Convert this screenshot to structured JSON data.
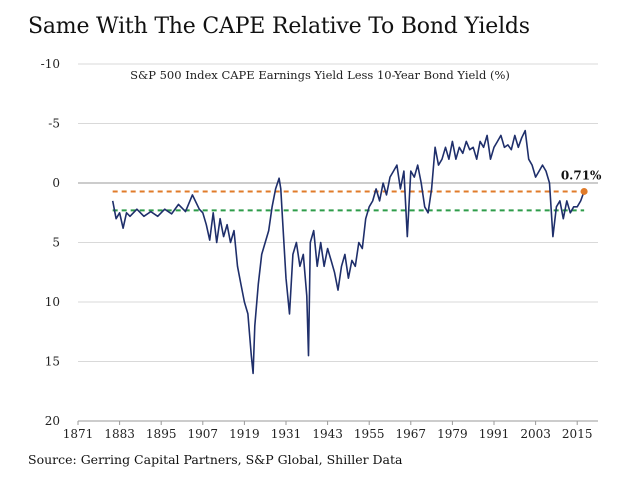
{
  "title": "Same With The CAPE Relative To Bond Yields",
  "source": "Source: Gerring Capital Partners, S&P Global, Shiller Data",
  "chart_data": {
    "type": "line",
    "subtitle": "S&P 500 Index CAPE Earnings Yield Less 10-Year Bond Yield (%)",
    "xlabel": "",
    "ylabel": "",
    "xlim": [
      1871,
      2021
    ],
    "ylim": [
      20,
      -10
    ],
    "y_axis_inverted": true,
    "x_ticks": [
      1871,
      1883,
      1895,
      1907,
      1919,
      1931,
      1943,
      1955,
      1967,
      1979,
      1991,
      2003,
      2015
    ],
    "y_ticks": [
      -10,
      -5,
      0,
      5,
      10,
      15,
      20
    ],
    "grid": "horizontal",
    "series": [
      {
        "color": "#1f2f6b",
        "x": [
          1881,
          1882,
          1883,
          1884,
          1885,
          1886,
          1888,
          1890,
          1892,
          1894,
          1896,
          1898,
          1900,
          1902,
          1904,
          1906,
          1907,
          1908,
          1909,
          1910,
          1911,
          1912,
          1913,
          1914,
          1915,
          1916,
          1917,
          1918,
          1919,
          1920,
          1921,
          1921.5,
          1922,
          1923,
          1924,
          1925,
          1926,
          1927,
          1928,
          1929,
          1929.5,
          1930,
          1931,
          1932,
          1933,
          1934,
          1935,
          1936,
          1937,
          1937.5,
          1938,
          1939,
          1940,
          1941,
          1942,
          1943,
          1944,
          1945,
          1946,
          1947,
          1948,
          1949,
          1950,
          1951,
          1952,
          1953,
          1954,
          1955,
          1956,
          1957,
          1958,
          1959,
          1960,
          1961,
          1962,
          1963,
          1964,
          1965,
          1966,
          1967,
          1968,
          1969,
          1970,
          1971,
          1972,
          1973,
          1974,
          1975,
          1976,
          1977,
          1978,
          1979,
          1980,
          1981,
          1982,
          1983,
          1984,
          1985,
          1986,
          1987,
          1988,
          1989,
          1990,
          1991,
          1992,
          1993,
          1994,
          1995,
          1996,
          1997,
          1998,
          1999,
          2000,
          2001,
          2002,
          2003,
          2004,
          2005,
          2006,
          2007,
          2008,
          2009,
          2010,
          2011,
          2012,
          2013,
          2014,
          2015,
          2016,
          2017
        ],
        "y": [
          1.5,
          3.0,
          2.5,
          3.8,
          2.5,
          2.8,
          2.2,
          2.8,
          2.4,
          2.8,
          2.2,
          2.6,
          1.8,
          2.4,
          1.0,
          2.2,
          2.5,
          3.5,
          4.8,
          2.5,
          5.0,
          3.0,
          4.5,
          3.5,
          5.0,
          4.0,
          7.0,
          8.5,
          10.0,
          11.0,
          14.5,
          16.0,
          12.0,
          8.5,
          6.0,
          5.0,
          4.0,
          2.0,
          0.5,
          -0.4,
          0.5,
          3.0,
          8.0,
          11.0,
          6.0,
          5.0,
          7.0,
          6.0,
          9.5,
          14.5,
          5.0,
          4.0,
          7.0,
          5.0,
          7.0,
          5.5,
          6.5,
          7.5,
          9.0,
          7.0,
          6.0,
          8.0,
          6.5,
          7.0,
          5.0,
          5.5,
          3.0,
          2.0,
          1.5,
          0.5,
          1.5,
          0.0,
          1.0,
          -0.5,
          -1.0,
          -1.5,
          0.5,
          -1.0,
          4.5,
          -1.0,
          -0.5,
          -1.5,
          0.0,
          2.0,
          2.5,
          0.5,
          -3.0,
          -1.5,
          -2.0,
          -3.0,
          -2.0,
          -3.5,
          -2.0,
          -3.0,
          -2.5,
          -3.5,
          -2.8,
          -3.0,
          -2.0,
          -3.5,
          -3.0,
          -4.0,
          -2.0,
          -3.0,
          -3.5,
          -4.0,
          -3.0,
          -3.2,
          -2.8,
          -4.0,
          -3.0,
          -3.8,
          -4.4,
          -2.0,
          -1.5,
          -0.5,
          -1.0,
          -1.5,
          -1.0,
          0.0,
          4.5,
          2.0,
          1.5,
          3.0,
          1.5,
          2.5,
          2.0,
          2.0,
          1.5,
          0.71
        ]
      }
    ],
    "reference_lines": [
      {
        "y": 0.71,
        "color": "#e07b2a",
        "style": "dashed"
      },
      {
        "y": 2.3,
        "color": "#2e9c4a",
        "style": "dashed"
      }
    ],
    "annotations": [
      {
        "text": "0.71%",
        "x": 2017,
        "y": 0.71,
        "marker_color": "#e07b2a"
      }
    ]
  }
}
